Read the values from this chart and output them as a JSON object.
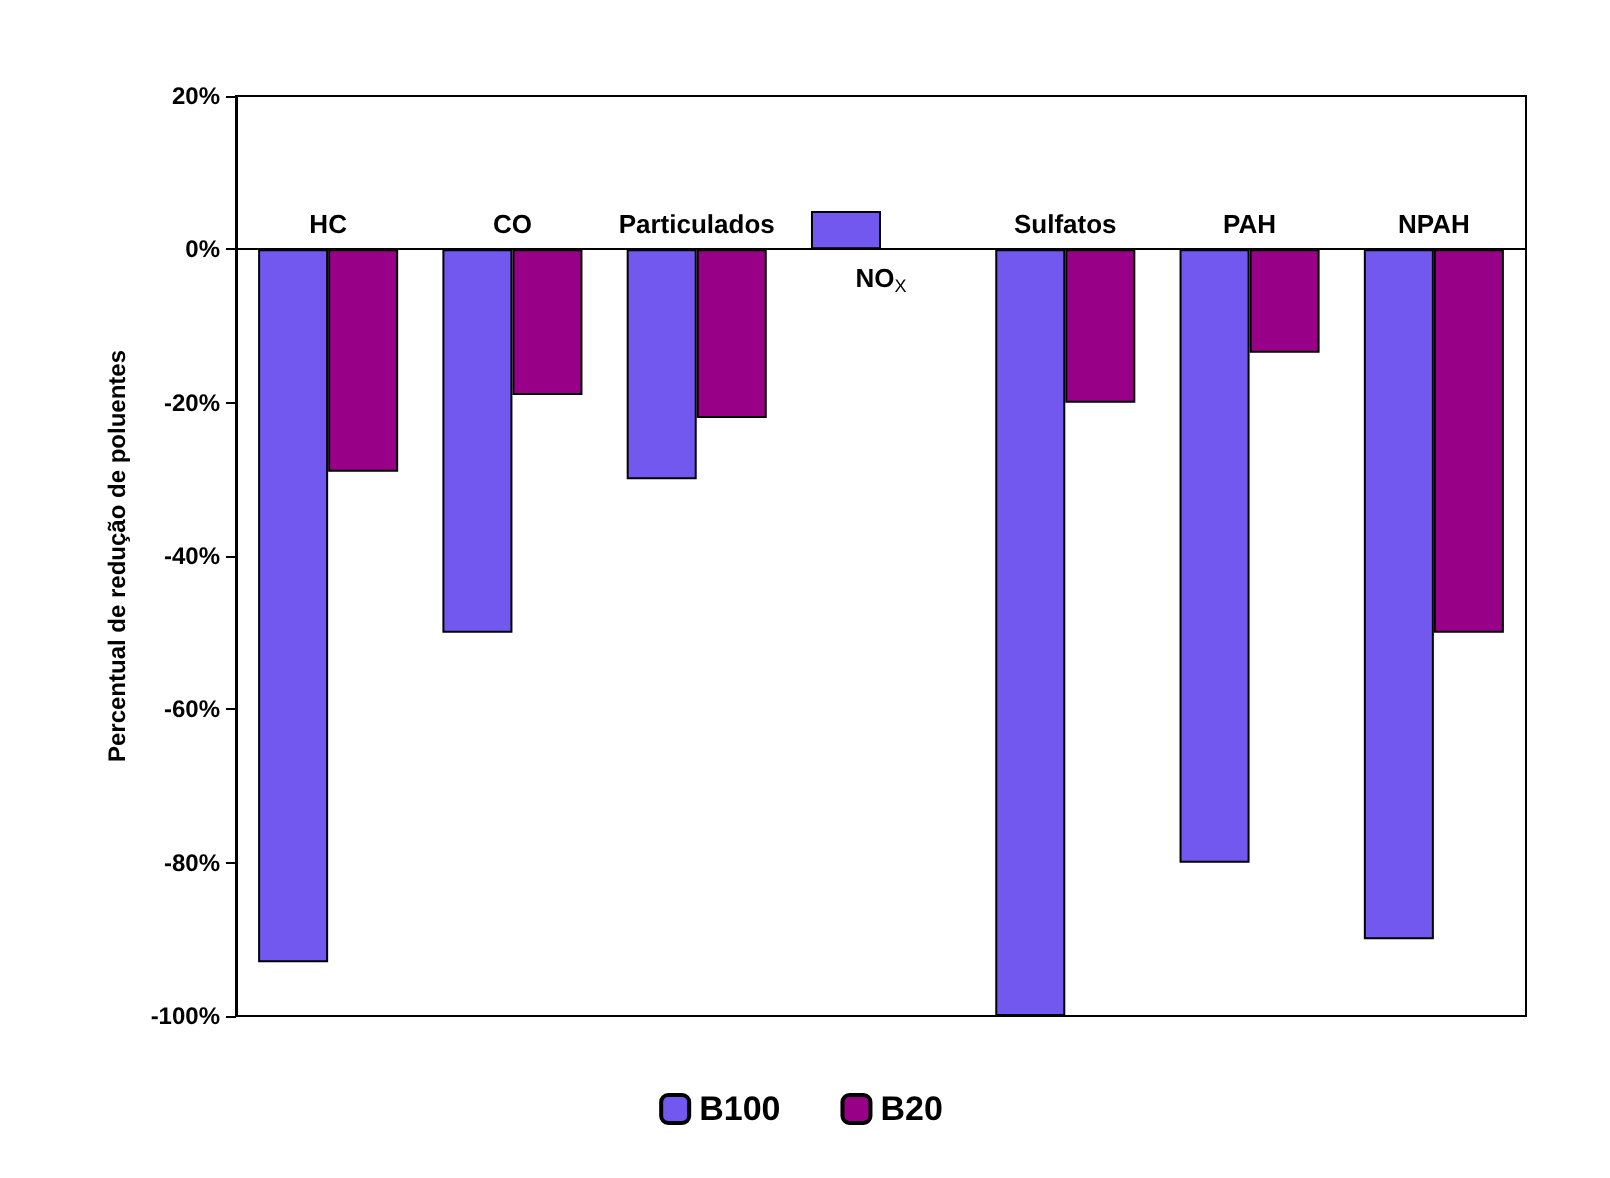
{
  "chart_data": {
    "type": "bar",
    "ylabel": "Percentual de redução de poluentes",
    "categories": [
      "HC",
      "CO",
      "Particulados",
      "NO$_{X}$",
      "Sulfatos",
      "PAH",
      "NPAH"
    ],
    "series": [
      {
        "name": "B100",
        "color": "#7358f0",
        "values": [
          -93,
          -50,
          -30,
          5,
          -100,
          -80,
          -90
        ]
      },
      {
        "name": "B20",
        "color": "#990088",
        "values": [
          -29,
          -19,
          -22,
          null,
          -20,
          -13.5,
          -50
        ]
      }
    ],
    "ylim": [
      -100,
      20
    ],
    "yticks": [
      {
        "value": -100,
        "label": "-100%"
      },
      {
        "value": -80,
        "label": "-80%"
      },
      {
        "value": -60,
        "label": "-60%"
      },
      {
        "value": -40,
        "label": "-40%"
      },
      {
        "value": -20,
        "label": "-20%"
      },
      {
        "value": 0,
        "label": "0%"
      },
      {
        "value": 20,
        "label": "20%"
      }
    ],
    "grid": false,
    "legend": "bottom"
  }
}
